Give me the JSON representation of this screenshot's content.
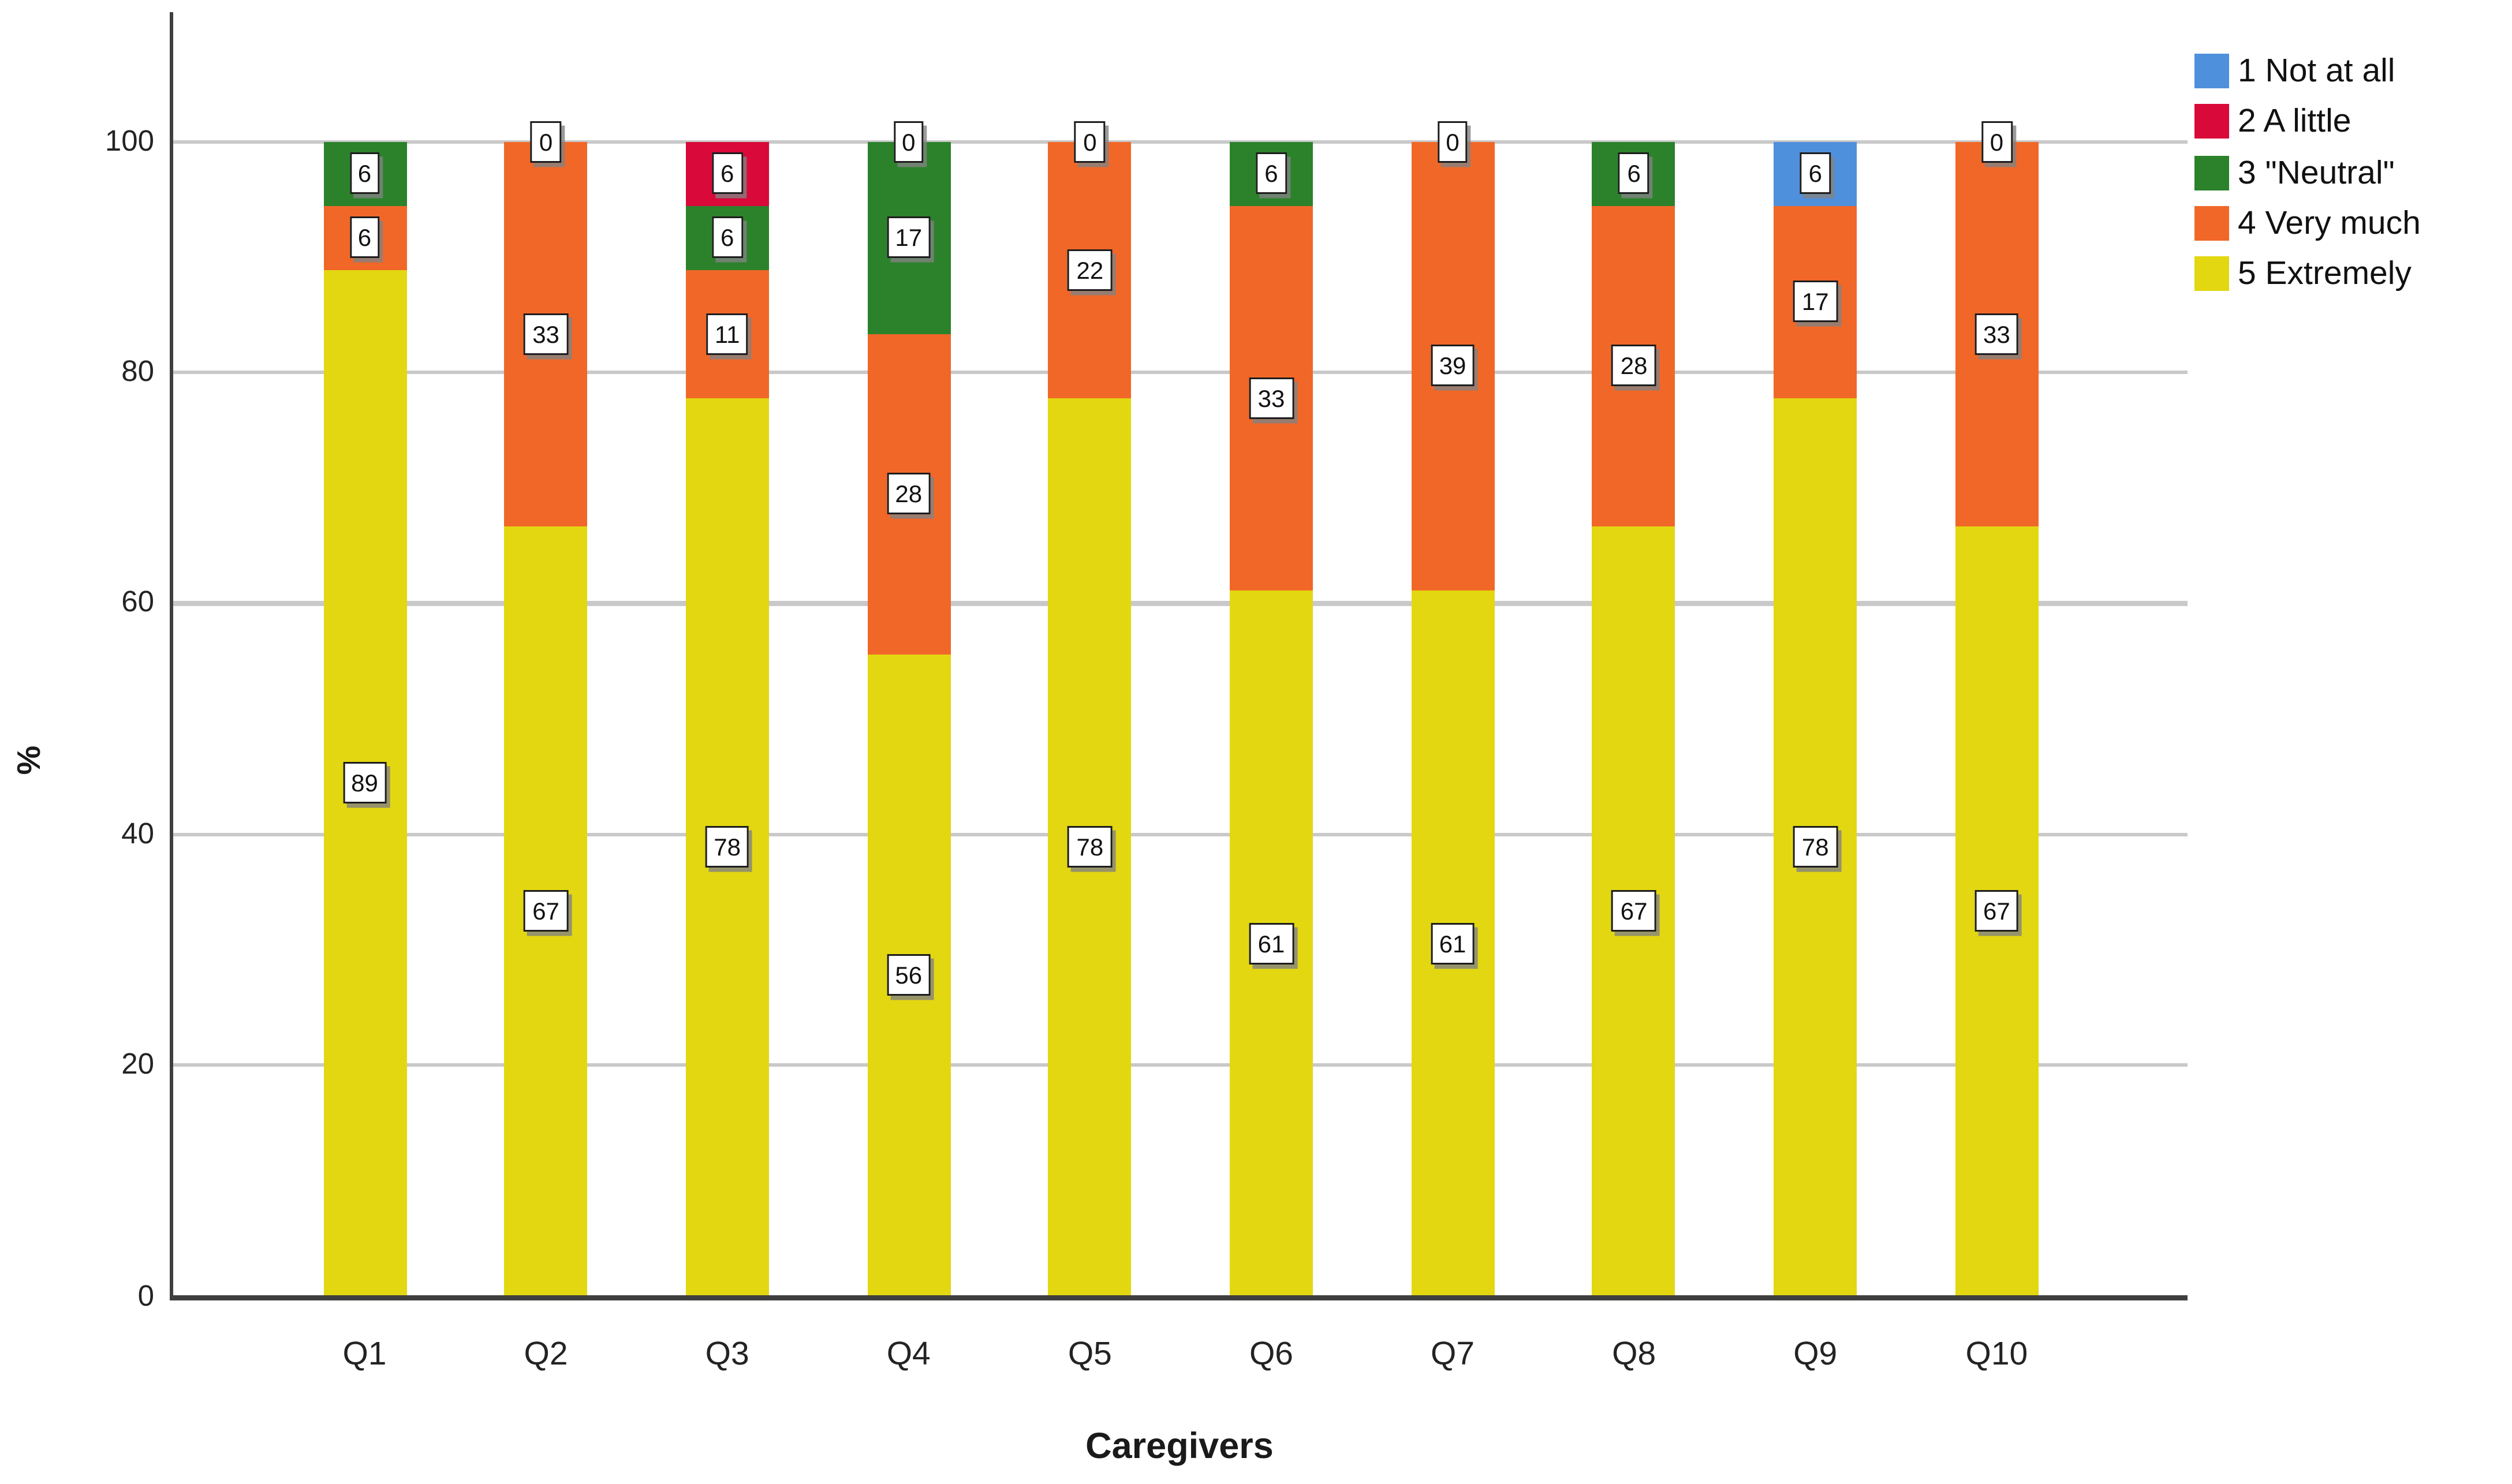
{
  "figure": {
    "y_axis": {
      "title": "%",
      "tick_labels": [
        "0",
        "20",
        "40",
        "60",
        "80",
        "100"
      ],
      "min": 0,
      "max": 100
    },
    "x_axis": {
      "title": "Caregivers",
      "categories": [
        "Q1",
        "Q2",
        "Q3",
        "Q4",
        "Q5",
        "Q6",
        "Q7",
        "Q8",
        "Q9",
        "Q10"
      ]
    },
    "zero_label_text": "0",
    "legend": {
      "position": "top-right",
      "items": [
        {
          "key": "not_at_all",
          "label": "1 Not at all",
          "color": "#4F90DC"
        },
        {
          "key": "a_little",
          "label": "2 A little",
          "color": "#D90939"
        },
        {
          "key": "neutral",
          "label": "3 \"Neutral\"",
          "color": "#2B822B"
        },
        {
          "key": "very_much",
          "label": "4 Very much",
          "color": "#F16728"
        },
        {
          "key": "extremely",
          "label": "5 Extremely",
          "color": "#E3D711"
        }
      ]
    },
    "bars": [
      {
        "category": "Q1",
        "zero_label": false,
        "segments": [
          {
            "key": "extremely",
            "label": "89",
            "height": 88.89
          },
          {
            "key": "very_much",
            "label": "6",
            "height": 5.56
          },
          {
            "key": "neutral",
            "label": "6",
            "height": 5.55
          }
        ]
      },
      {
        "category": "Q2",
        "zero_label": true,
        "segments": [
          {
            "key": "extremely",
            "label": "67",
            "height": 66.67
          },
          {
            "key": "very_much",
            "label": "33",
            "height": 33.33
          }
        ]
      },
      {
        "category": "Q3",
        "zero_label": false,
        "segments": [
          {
            "key": "extremely",
            "label": "78",
            "height": 77.78
          },
          {
            "key": "very_much",
            "label": "11",
            "height": 11.11
          },
          {
            "key": "neutral",
            "label": "6",
            "height": 5.56
          },
          {
            "key": "a_little",
            "label": "6",
            "height": 5.55
          }
        ]
      },
      {
        "category": "Q4",
        "zero_label": true,
        "segments": [
          {
            "key": "extremely",
            "label": "56",
            "height": 55.56
          },
          {
            "key": "very_much",
            "label": "28",
            "height": 27.78
          },
          {
            "key": "neutral",
            "label": "17",
            "height": 16.66
          }
        ]
      },
      {
        "category": "Q5",
        "zero_label": true,
        "segments": [
          {
            "key": "extremely",
            "label": "78",
            "height": 77.78
          },
          {
            "key": "very_much",
            "label": "22",
            "height": 22.22
          }
        ]
      },
      {
        "category": "Q6",
        "zero_label": false,
        "segments": [
          {
            "key": "extremely",
            "label": "61",
            "height": 61.11
          },
          {
            "key": "very_much",
            "label": "33",
            "height": 33.33
          },
          {
            "key": "neutral",
            "label": "6",
            "height": 5.56
          }
        ]
      },
      {
        "category": "Q7",
        "zero_label": true,
        "segments": [
          {
            "key": "extremely",
            "label": "61",
            "height": 61.11
          },
          {
            "key": "very_much",
            "label": "39",
            "height": 38.89
          }
        ]
      },
      {
        "category": "Q8",
        "zero_label": false,
        "segments": [
          {
            "key": "extremely",
            "label": "67",
            "height": 66.67
          },
          {
            "key": "very_much",
            "label": "28",
            "height": 27.78
          },
          {
            "key": "neutral",
            "label": "6",
            "height": 5.55
          }
        ]
      },
      {
        "category": "Q9",
        "zero_label": false,
        "segments": [
          {
            "key": "extremely",
            "label": "78",
            "height": 77.78
          },
          {
            "key": "very_much",
            "label": "17",
            "height": 16.67
          },
          {
            "key": "not_at_all",
            "label": "6",
            "height": 5.55
          }
        ]
      },
      {
        "category": "Q10",
        "zero_label": true,
        "segments": [
          {
            "key": "extremely",
            "label": "67",
            "height": 66.67
          },
          {
            "key": "very_much",
            "label": "33",
            "height": 33.33
          }
        ]
      }
    ]
  },
  "chart_data": {
    "type": "bar",
    "stacked": true,
    "stacking": "percent",
    "title": "",
    "categories": [
      "Q1",
      "Q2",
      "Q3",
      "Q4",
      "Q5",
      "Q6",
      "Q7",
      "Q8",
      "Q9",
      "Q10"
    ],
    "series": [
      {
        "name": "1 Not at all",
        "color": "#4F90DC",
        "values": [
          0,
          0,
          0,
          0,
          0,
          0,
          0,
          0,
          6,
          0
        ]
      },
      {
        "name": "2 A little",
        "color": "#D90939",
        "values": [
          0,
          0,
          6,
          0,
          0,
          0,
          0,
          0,
          0,
          0
        ]
      },
      {
        "name": "3 \"Neutral\"",
        "color": "#2B822B",
        "values": [
          6,
          0,
          6,
          17,
          0,
          6,
          0,
          6,
          0,
          0
        ]
      },
      {
        "name": "4 Very much",
        "color": "#F16728",
        "values": [
          6,
          33,
          11,
          28,
          22,
          33,
          39,
          28,
          17,
          33
        ]
      },
      {
        "name": "5 Extremely",
        "color": "#E3D711",
        "values": [
          89,
          67,
          78,
          56,
          78,
          61,
          61,
          67,
          78,
          67
        ]
      }
    ],
    "xlabel": "Caregivers",
    "ylabel": "%",
    "ylim": [
      0,
      100
    ],
    "yticks": [
      0,
      20,
      40,
      60,
      80,
      100
    ],
    "grid": "horizontal gridlines at y ticks",
    "legend_position": "top-right",
    "data_labels": "each segment labeled in a white outlined box; '0' boxes shown at the 100% line for Q2, Q4, Q5, Q7, Q10"
  }
}
